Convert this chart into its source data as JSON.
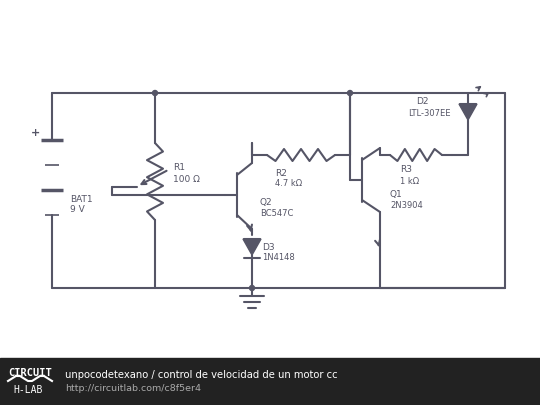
{
  "bg_color": "#ffffff",
  "footer_bg": "#222222",
  "footer_text1": "unpocodetexano / control de velocidad de un motor cc",
  "footer_text2": "http://circuitlab.com/c8f5er4",
  "footer_text_color": "#ffffff",
  "footer_url_color": "#aaaaaa",
  "line_color": "#555566",
  "line_width": 1.5,
  "title": "control de velocidad de un motor cc - CircuitLab"
}
